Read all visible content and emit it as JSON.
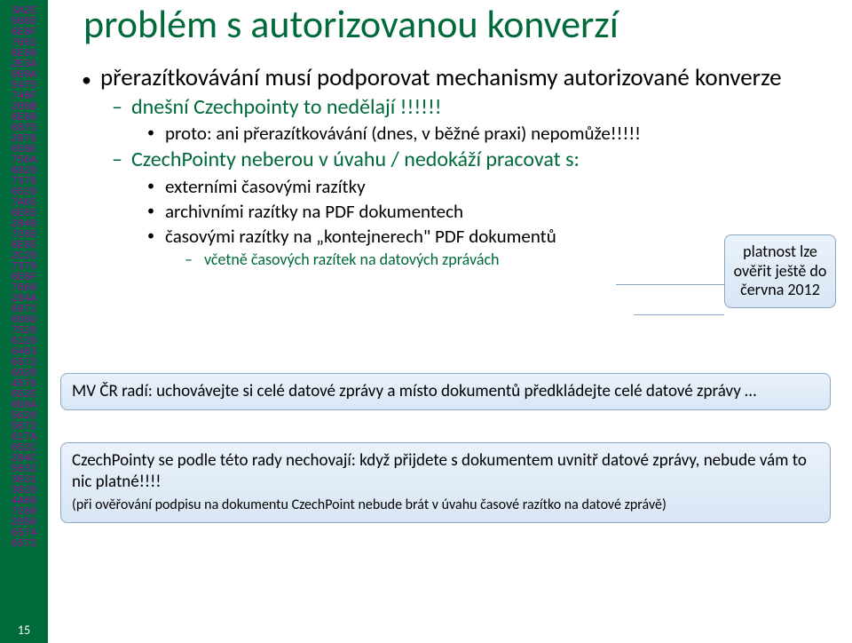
{
  "sidebar": {
    "hex": [
      "3A2E",
      "5665",
      "6E6F",
      "7661",
      "6E69",
      "2E3A",
      "0D0A",
      "5475",
      "746F",
      "206B",
      "6E69",
      "6875",
      "2076",
      "656E",
      "756A",
      "6920",
      "7376",
      "6520",
      "7A65",
      "6E65",
      "2049",
      "7265",
      "6E65",
      "2C20",
      "7379",
      "6E6F",
      "7669",
      "204A",
      "6972",
      "696D",
      "7520",
      "6120",
      "6463",
      "6572",
      "6920",
      "4576",
      "652E",
      "0D0A",
      "5620",
      "5072",
      "617A",
      "652C",
      "204C",
      "5032",
      "3031",
      "3020",
      "4A69",
      "7269",
      "2050",
      "6574",
      "6572"
    ],
    "page_number": "15"
  },
  "title": "problém s autorizovanou konverzí",
  "l1_1": "přerazítkovávání musí podporovat mechanismy autorizované konverze",
  "l2_1": "dnešní Czechpointy to nedělají !!!!!!",
  "l3_1": "proto: ani přerazítkovávání (dnes, v běžné praxi) nepomůže!!!!!",
  "l2_2": "CzechPointy neberou v úvahu / nedokáží pracovat s:",
  "l3_2": "externími časovými razítky",
  "l3_3": "archivními razítky na PDF dokumentech",
  "l3_4": "časovými razítky na „kontejnerech\" PDF dokumentů",
  "l4_1": "včetně časových razítek na datových zprávách",
  "callout": "platnost lze ověřit ještě do června 2012",
  "box1": "MV ČR radí: uchovávejte si celé datové zprávy a místo dokumentů předkládejte celé datové zprávy …",
  "box2_a": "CzechPointy se podle této rady nechovají: když přijdete s dokumentem uvnitř datové zprávy, nebude vám to nic platné!!!!",
  "box2_b": "(při ověřování podpisu na dokumentu CzechPoint nebude brát v úvahu časové razítko na datové zprávě)",
  "colors": {
    "green": "#006a3a",
    "purple": "#a500a5",
    "box_border": "#8ba7c7"
  }
}
